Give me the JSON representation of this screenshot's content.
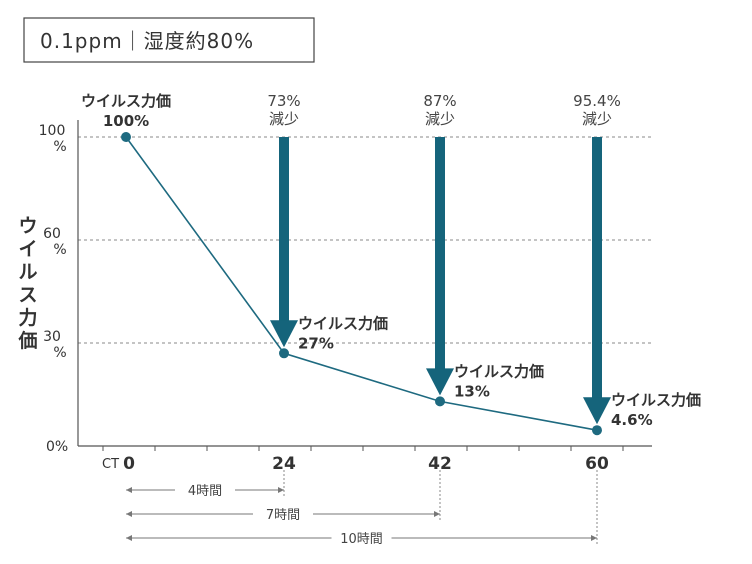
{
  "header": {
    "condition": "0.1ppm｜湿度約80%"
  },
  "chart_data": {
    "type": "line",
    "ylabel": "ウイルス力価",
    "x_axis_prefix": "CT",
    "x": [
      0,
      24,
      42,
      60
    ],
    "values": [
      100,
      27,
      13,
      4.6
    ],
    "ylim": [
      0,
      100
    ],
    "y_ticks": [
      {
        "value": 0,
        "label": "0%"
      },
      {
        "value": 30,
        "label": "30\n%"
      },
      {
        "value": 60,
        "label": "60\n%"
      },
      {
        "value": 100,
        "label": "100\n%"
      }
    ],
    "grid": "dashed",
    "point_labels": [
      {
        "x": 0,
        "line1": "ウイルス力価",
        "line2": "100%"
      },
      {
        "x": 24,
        "line1": "ウイルス力価",
        "line2": "27%"
      },
      {
        "x": 42,
        "line1": "ウイルス力価",
        "line2": "13%"
      },
      {
        "x": 60,
        "line1": "ウイルス力価",
        "line2": "4.6%"
      }
    ],
    "reductions": [
      {
        "x": 24,
        "value": "73%",
        "label": "減少"
      },
      {
        "x": 42,
        "value": "87%",
        "label": "減少"
      },
      {
        "x": 60,
        "value": "95.4%",
        "label": "減少"
      }
    ],
    "durations": [
      {
        "to_x": 24,
        "label": "4時間"
      },
      {
        "to_x": 42,
        "label": "7時間"
      },
      {
        "to_x": 60,
        "label": "10時間"
      }
    ],
    "colors": {
      "line": "#1e6a80",
      "arrow": "#15647b",
      "grid": "#888888",
      "text": "#333333"
    }
  }
}
